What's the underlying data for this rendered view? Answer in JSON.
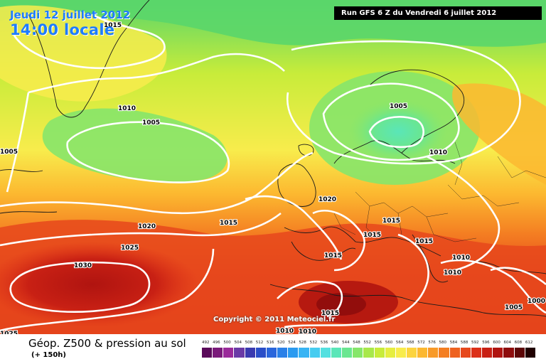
{
  "header": {
    "date": "Jeudi 12 juillet 2012",
    "time": "14:00 locale",
    "run_info": "Run GFS 6 Z du Vendredi 6 juillet 2012"
  },
  "map": {
    "copyright": "Copyright © 2011 Meteociel.fr",
    "isobar_labels": [
      "1015",
      "1010",
      "1005",
      "1005",
      "1005",
      "1010",
      "1020",
      "1015",
      "1025",
      "1030",
      "1025",
      "1020",
      "1015",
      "1015",
      "1015",
      "1015",
      "1010",
      "1010",
      "1015",
      "1010",
      "1010",
      "1005",
      "1000"
    ]
  },
  "legend": {
    "title": "Géop. Z500 & pression au sol",
    "subtitle": "(+ 150h)",
    "scale_values": [
      "492",
      "496",
      "500",
      "504",
      "508",
      "512",
      "516",
      "520",
      "524",
      "528",
      "532",
      "536",
      "540",
      "544",
      "548",
      "552",
      "556",
      "560",
      "564",
      "568",
      "572",
      "576",
      "580",
      "584",
      "588",
      "592",
      "596",
      "600",
      "604",
      "608",
      "612"
    ],
    "scale_colors": [
      "#5a0a5a",
      "#7a1a7a",
      "#9a2a9a",
      "#6a3aa6",
      "#3a3ab0",
      "#2a4ec8",
      "#2a66dc",
      "#2a80e8",
      "#2a9af0",
      "#38b4f4",
      "#46ccf0",
      "#54e0e0",
      "#5ae6b8",
      "#6ae690",
      "#86e66a",
      "#a8e84a",
      "#c8ec3a",
      "#e6ee40",
      "#f8ec4c",
      "#fcd43e",
      "#fcb830",
      "#f89a28",
      "#f47e22",
      "#ee6220",
      "#e6481c",
      "#dc3018",
      "#c82014",
      "#b01410",
      "#8e0c0c",
      "#5c0606",
      "#200000"
    ]
  }
}
